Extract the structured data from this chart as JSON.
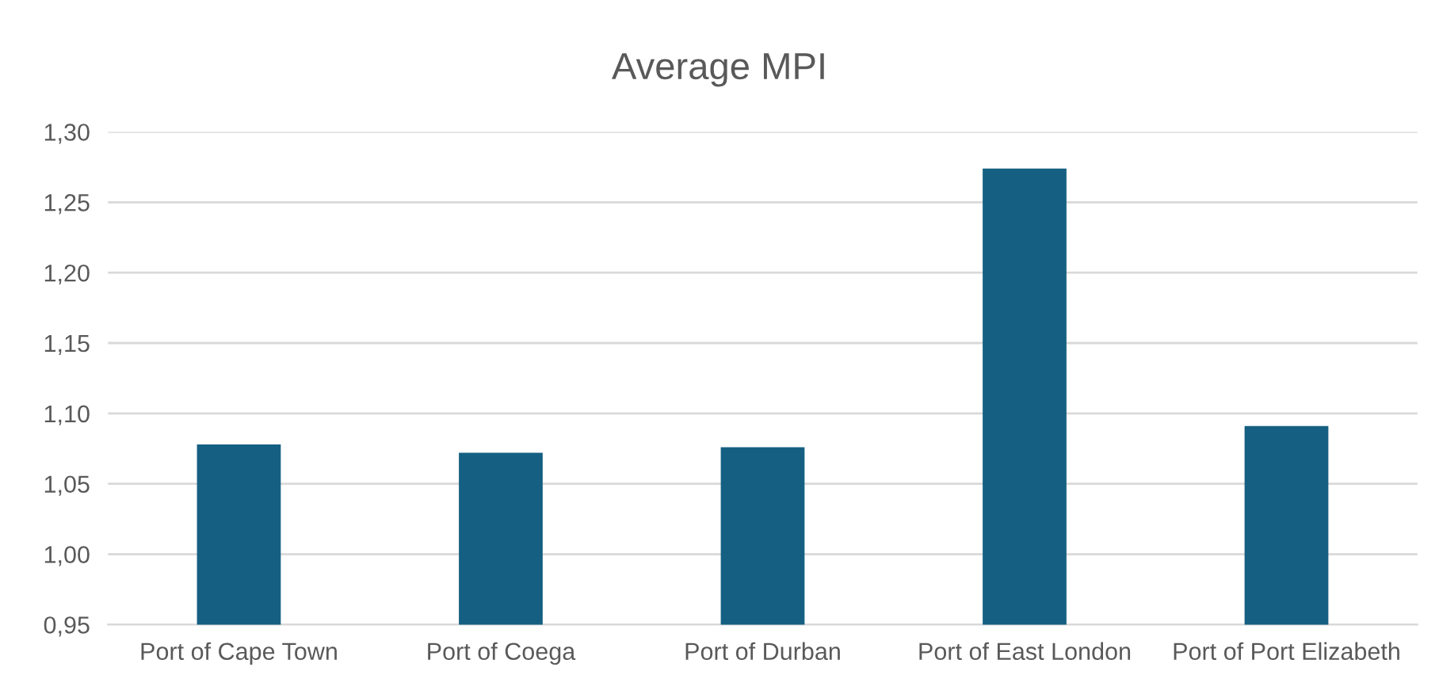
{
  "chart_data": {
    "type": "bar",
    "title": "Average MPI",
    "categories": [
      "Port of Cape Town",
      "Port of Coega",
      "Port of Durban",
      "Port of East London",
      "Port of Port Elizabeth"
    ],
    "values": [
      1.078,
      1.072,
      1.076,
      1.274,
      1.091
    ],
    "color": "#156082",
    "ylim": [
      0.95,
      1.3
    ],
    "yticks": [
      {
        "value": 0.95,
        "label": "0,95"
      },
      {
        "value": 1.0,
        "label": "1,00"
      },
      {
        "value": 1.05,
        "label": "1,05"
      },
      {
        "value": 1.1,
        "label": "1,10"
      },
      {
        "value": 1.15,
        "label": "1,15"
      },
      {
        "value": 1.2,
        "label": "1,20"
      },
      {
        "value": 1.25,
        "label": "1,25"
      },
      {
        "value": 1.3,
        "label": "1,30"
      }
    ],
    "grid": "y"
  }
}
